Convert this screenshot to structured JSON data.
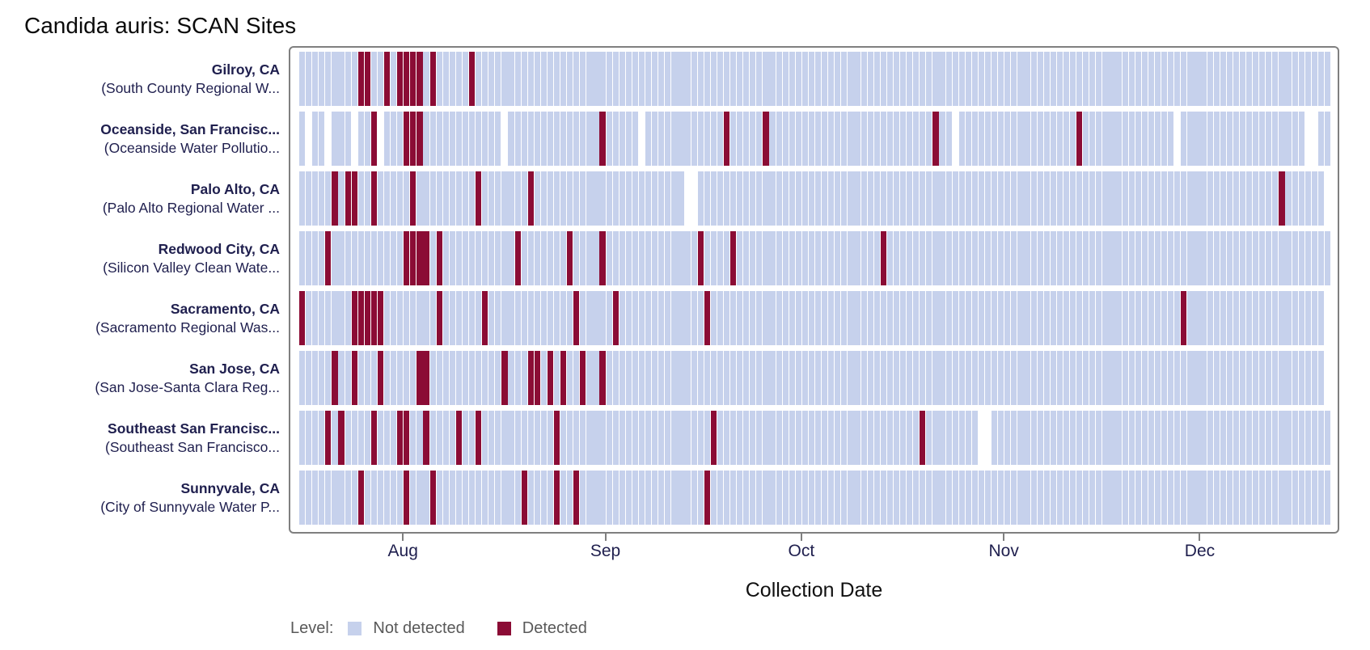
{
  "title": "Candida auris: SCAN Sites",
  "xlabel": "Collection Date",
  "legend": {
    "label": "Level:",
    "items": [
      {
        "name": "Not detected",
        "color": "#c6d1ec"
      },
      {
        "name": "Detected",
        "color": "#8b0c35"
      }
    ]
  },
  "colors": {
    "not_detected": "#c6d1ec",
    "detected": "#8b0c35",
    "panel_border": "#7f7f7f",
    "label_text": "#1f1f4e",
    "legend_text": "#595959"
  },
  "chart_data": {
    "type": "heatmap",
    "title": "Candida auris: SCAN Sites",
    "xlabel": "Collection Date",
    "x_ticks": [
      "Aug",
      "Sep",
      "Oct",
      "Nov",
      "Dec"
    ],
    "date_range": {
      "start": "Jul 16",
      "end": "Dec 20"
    },
    "legend_position": "bottom",
    "sites": [
      {
        "city": "Gilroy, CA",
        "facility": "(South County Regional W...",
        "start": "Jul 16",
        "end": "Dec 20",
        "detected": [
          "Jul 25",
          "Jul 26",
          "Jul 29",
          "Jul 31",
          "Aug 1",
          "Aug 2",
          "Aug 3",
          "Aug 5",
          "Aug 11"
        ],
        "missing": []
      },
      {
        "city": "Oceanside, San Francisc...",
        "facility": "(Oceanside Water Pollutio...",
        "start": "Jul 16",
        "end": "Dec 20",
        "detected": [
          "Jul 27",
          "Aug 1",
          "Aug 2",
          "Aug 3",
          "Aug 31",
          "Sep 19",
          "Sep 25",
          "Oct 21",
          "Nov 12"
        ],
        "missing": [
          "Jul 17",
          "Jul 20",
          "Jul 24",
          "Jul 28",
          "Aug 16",
          "Sep 6",
          "Oct 24",
          "Nov 27",
          "Dec 17",
          "Dec 18"
        ]
      },
      {
        "city": "Palo Alto, CA",
        "facility": "(Palo Alto Regional Water ...",
        "start": "Jul 16",
        "end": "Dec 19",
        "detected": [
          "Jul 21",
          "Jul 23",
          "Jul 24",
          "Jul 27",
          "Aug 2",
          "Aug 12",
          "Aug 20",
          "Dec 13"
        ],
        "missing": [
          "Sep 13",
          "Sep 14"
        ]
      },
      {
        "city": "Redwood City, CA",
        "facility": "(Silicon Valley Clean Wate...",
        "start": "Jul 16",
        "end": "Dec 20",
        "detected": [
          "Jul 20",
          "Aug 1",
          "Aug 2",
          "Aug 3",
          "Aug 4",
          "Aug 6",
          "Aug 18",
          "Aug 26",
          "Aug 31",
          "Sep 15",
          "Sep 20",
          "Oct 13"
        ],
        "missing": []
      },
      {
        "city": "Sacramento, CA",
        "facility": "(Sacramento Regional Was...",
        "start": "Jul 16",
        "end": "Dec 19",
        "detected": [
          "Jul 16",
          "Jul 24",
          "Jul 25",
          "Jul 26",
          "Jul 27",
          "Jul 28",
          "Aug 6",
          "Aug 13",
          "Aug 27",
          "Sep 2",
          "Sep 16",
          "Nov 28"
        ],
        "missing": []
      },
      {
        "city": "San Jose, CA",
        "facility": "(San Jose-Santa Clara Reg...",
        "start": "Jul 16",
        "end": "Dec 19",
        "detected": [
          "Jul 21",
          "Jul 24",
          "Jul 28",
          "Aug 3",
          "Aug 4",
          "Aug 16",
          "Aug 20",
          "Aug 21",
          "Aug 23",
          "Aug 25",
          "Aug 28",
          "Aug 31"
        ],
        "missing": []
      },
      {
        "city": "Southeast San Francisc...",
        "facility": "(Southeast San Francisco...",
        "start": "Jul 16",
        "end": "Dec 20",
        "detected": [
          "Jul 20",
          "Jul 22",
          "Jul 27",
          "Jul 31",
          "Aug 1",
          "Aug 4",
          "Aug 9",
          "Aug 12",
          "Aug 24",
          "Sep 17",
          "Oct 19"
        ],
        "missing": [
          "Oct 28",
          "Oct 29"
        ]
      },
      {
        "city": "Sunnyvale, CA",
        "facility": "(City of Sunnyvale Water P...",
        "start": "Jul 16",
        "end": "Dec 20",
        "detected": [
          "Jul 25",
          "Aug 1",
          "Aug 5",
          "Aug 19",
          "Aug 24",
          "Aug 27",
          "Sep 16"
        ],
        "missing": []
      }
    ]
  }
}
